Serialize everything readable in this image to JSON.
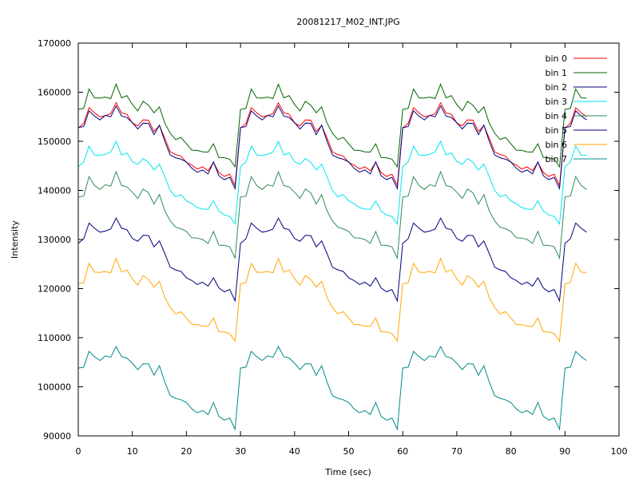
{
  "chart_data": {
    "type": "line",
    "title": "20081217_M02_INT.JPG",
    "xlabel": "Time (sec)",
    "ylabel": "Intensity",
    "xlim": [
      0,
      100
    ],
    "ylim": [
      90000,
      170000
    ],
    "x_ticks": [
      "0",
      "10",
      "20",
      "30",
      "40",
      "50",
      "60",
      "70",
      "80",
      "90",
      "100"
    ],
    "y_ticks": [
      "90000",
      "100000",
      "110000",
      "120000",
      "130000",
      "140000",
      "150000",
      "160000",
      "170000"
    ],
    "grid": false,
    "legend_position": "top-right",
    "series": [
      {
        "name": "bin 0",
        "color": "#ff0000",
        "offset": 153000
      },
      {
        "name": "bin 1",
        "color": "#006400",
        "offset": 156500
      },
      {
        "name": "bin 2",
        "color": "#000080",
        "offset": 152500
      },
      {
        "name": "bin 3",
        "color": "#00e5ee",
        "offset": 145000
      },
      {
        "name": "bin 4",
        "color": "#2e8b57",
        "offset": 138500
      },
      {
        "name": "bin 5",
        "color": "#000080",
        "offset": 129500
      },
      {
        "name": "bin 6",
        "color": "#ffa500",
        "offset": 121000
      },
      {
        "name": "bin 7",
        "color": "#008b8b",
        "offset": 103500
      }
    ],
    "cycle_pattern": [
      0,
      500,
      4000,
      2500,
      2000,
      2500,
      2500,
      5000,
      2500,
      2500,
      1000,
      0,
      1500,
      1000,
      -1000,
      500,
      -2500,
      -5000,
      -6000,
      -6000,
      -7000,
      -8000,
      -8500,
      -8500,
      -9000,
      -7000,
      -9500,
      -10000,
      -10000,
      -12000
    ],
    "cycle_length": 30,
    "x_max": 94
  }
}
